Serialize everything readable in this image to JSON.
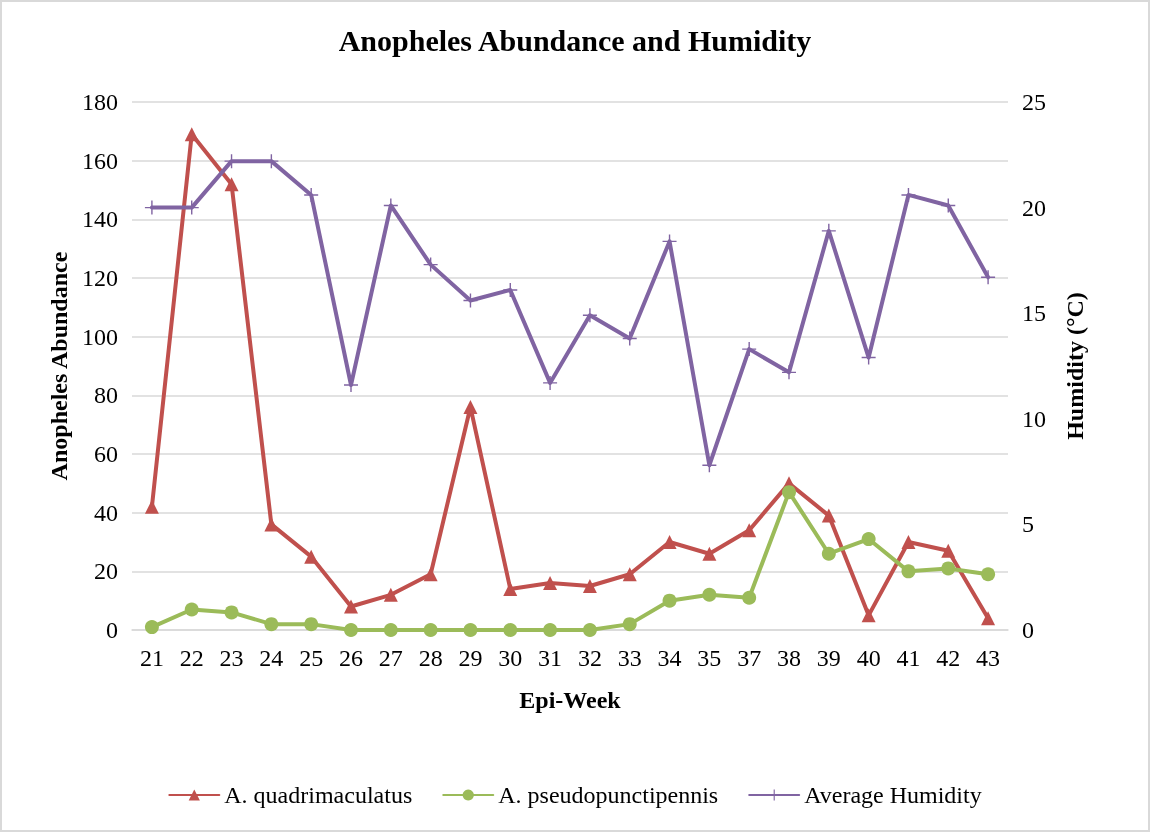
{
  "chart_data": {
    "type": "line",
    "title": "Anopheles Abundance and Humidity",
    "xlabel": "Epi-Week",
    "ylabel": "Anopheles Abundance",
    "y2label": "Humidity (°C)",
    "categories": [
      "21",
      "22",
      "23",
      "24",
      "25",
      "26",
      "27",
      "28",
      "29",
      "30",
      "31",
      "32",
      "33",
      "34",
      "35",
      "37",
      "38",
      "39",
      "40",
      "41",
      "42",
      "43"
    ],
    "series": [
      {
        "name": "A. quadrimaculatus",
        "color": "#c0504d",
        "marker": "triangle",
        "values": [
          42,
          169,
          152,
          36,
          25,
          8,
          12,
          19,
          76,
          14,
          16,
          15,
          19,
          30,
          26,
          34,
          50,
          39,
          5,
          30,
          27,
          4
        ]
      },
      {
        "name": "A. pseudopunctipennis",
        "color": "#9bbb59",
        "marker": "circle",
        "values": [
          1,
          7,
          6,
          2,
          2,
          0,
          0,
          0,
          0,
          0,
          0,
          0,
          2,
          10,
          12,
          11,
          47,
          26,
          31,
          20,
          21,
          19
        ]
      },
      {
        "name": "Average Humidity",
        "color": "#8064a2",
        "marker": "cross",
        "axis": "y2",
        "values": [
          20.0,
          20.0,
          22.2,
          22.2,
          20.6,
          11.6,
          20.1,
          17.3,
          15.6,
          16.1,
          11.7,
          14.9,
          13.8,
          18.4,
          7.8,
          13.3,
          12.2,
          18.9,
          12.9,
          20.6,
          20.1,
          16.7
        ]
      }
    ],
    "ylim": [
      0,
      180
    ],
    "yticks": [
      0,
      20,
      40,
      60,
      80,
      100,
      120,
      140,
      160,
      180
    ],
    "y2lim": [
      0,
      25
    ],
    "y2ticks": [
      0,
      5,
      10,
      15,
      20,
      25
    ],
    "grid": "y",
    "legend": "bottom",
    "line_style": "solid"
  }
}
